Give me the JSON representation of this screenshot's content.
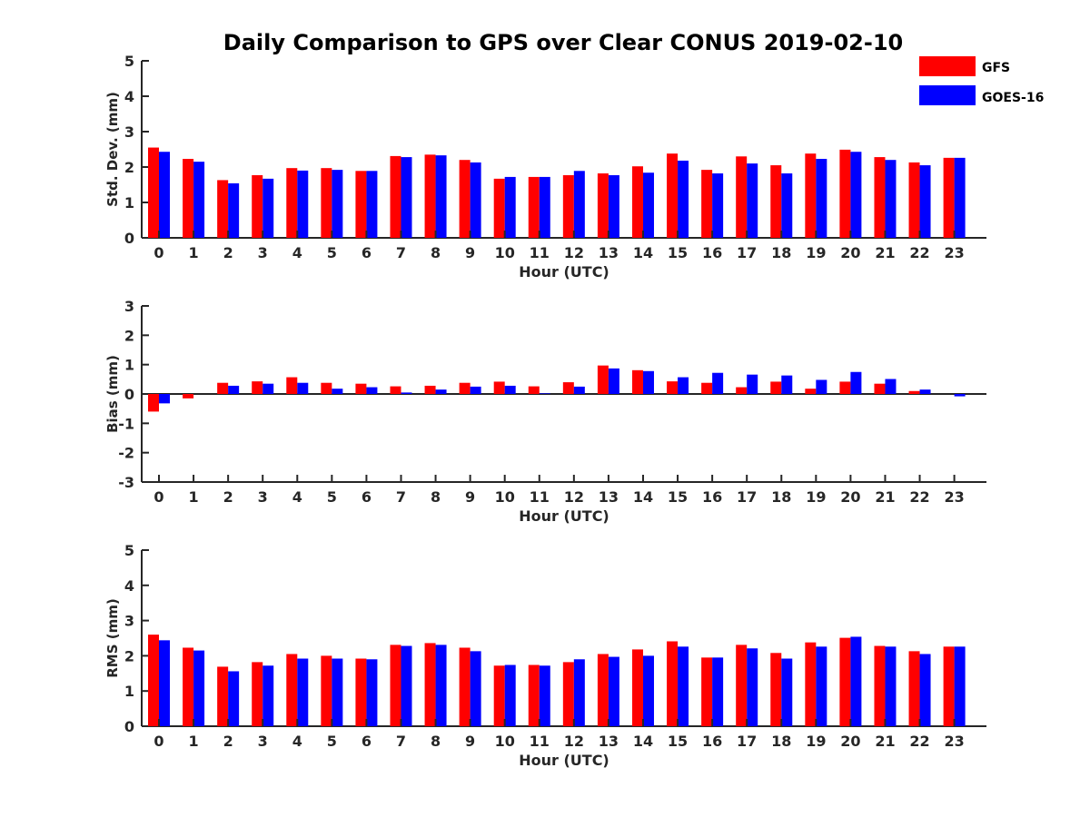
{
  "title": "Daily Comparison to GPS over Clear CONUS 2019-02-10",
  "legend": [
    {
      "label": "GFS",
      "color": "#ff0000"
    },
    {
      "label": "GOES-16",
      "color": "#0000ff"
    }
  ],
  "chart_data": [
    {
      "type": "bar",
      "xlabel": "Hour (UTC)",
      "ylabel": "Std. Dev. (mm)",
      "ylim": [
        0,
        5
      ],
      "yticks": [
        "0",
        "1",
        "2",
        "3",
        "4",
        "5"
      ],
      "categories": [
        "0",
        "1",
        "2",
        "3",
        "4",
        "5",
        "6",
        "7",
        "8",
        "9",
        "10",
        "11",
        "12",
        "13",
        "14",
        "15",
        "16",
        "17",
        "18",
        "19",
        "20",
        "21",
        "22",
        "23"
      ],
      "series": [
        {
          "name": "GFS",
          "values": [
            2.55,
            2.23,
            1.63,
            1.77,
            1.97,
            1.97,
            1.89,
            2.31,
            2.35,
            2.2,
            1.67,
            1.72,
            1.77,
            1.82,
            2.02,
            2.38,
            1.92,
            2.3,
            2.05,
            2.38,
            2.49,
            2.28,
            2.13,
            2.26
          ]
        },
        {
          "name": "GOES-16",
          "values": [
            2.43,
            2.15,
            1.54,
            1.67,
            1.9,
            1.92,
            1.89,
            2.28,
            2.33,
            2.13,
            1.72,
            1.72,
            1.89,
            1.77,
            1.84,
            2.18,
            1.82,
            2.1,
            1.82,
            2.23,
            2.43,
            2.2,
            2.05,
            2.26
          ]
        }
      ]
    },
    {
      "type": "bar",
      "xlabel": "Hour (UTC)",
      "ylabel": "Bias (mm)",
      "ylim": [
        -3,
        3
      ],
      "yticks": [
        "-3",
        "-2",
        "-1",
        "0",
        "1",
        "2",
        "3"
      ],
      "categories": [
        "0",
        "1",
        "2",
        "3",
        "4",
        "5",
        "6",
        "7",
        "8",
        "9",
        "10",
        "11",
        "12",
        "13",
        "14",
        "15",
        "16",
        "17",
        "18",
        "19",
        "20",
        "21",
        "22",
        "23"
      ],
      "series": [
        {
          "name": "GFS",
          "values": [
            -0.6,
            -0.15,
            0.38,
            0.43,
            0.57,
            0.38,
            0.35,
            0.26,
            0.28,
            0.38,
            0.42,
            0.26,
            0.4,
            0.97,
            0.81,
            0.43,
            0.38,
            0.23,
            0.42,
            0.18,
            0.42,
            0.35,
            0.1,
            0.0
          ]
        },
        {
          "name": "GOES-16",
          "values": [
            -0.32,
            0.0,
            0.28,
            0.35,
            0.38,
            0.18,
            0.23,
            0.05,
            0.15,
            0.25,
            0.28,
            0.02,
            0.25,
            0.87,
            0.78,
            0.57,
            0.72,
            0.66,
            0.63,
            0.48,
            0.75,
            0.51,
            0.15,
            -0.08
          ]
        }
      ]
    },
    {
      "type": "bar",
      "xlabel": "Hour (UTC)",
      "ylabel": "RMS (mm)",
      "ylim": [
        0,
        5
      ],
      "yticks": [
        "0",
        "1",
        "2",
        "3",
        "4",
        "5"
      ],
      "categories": [
        "0",
        "1",
        "2",
        "3",
        "4",
        "5",
        "6",
        "7",
        "8",
        "9",
        "10",
        "11",
        "12",
        "13",
        "14",
        "15",
        "16",
        "17",
        "18",
        "19",
        "20",
        "21",
        "22",
        "23"
      ],
      "series": [
        {
          "name": "GFS",
          "values": [
            2.6,
            2.23,
            1.69,
            1.82,
            2.05,
            2.0,
            1.92,
            2.31,
            2.36,
            2.23,
            1.72,
            1.74,
            1.82,
            2.05,
            2.18,
            2.41,
            1.95,
            2.31,
            2.08,
            2.38,
            2.51,
            2.28,
            2.13,
            2.26
          ]
        },
        {
          "name": "GOES-16",
          "values": [
            2.44,
            2.15,
            1.56,
            1.72,
            1.92,
            1.92,
            1.9,
            2.28,
            2.31,
            2.13,
            1.74,
            1.72,
            1.9,
            1.97,
            2.0,
            2.26,
            1.95,
            2.21,
            1.92,
            2.26,
            2.54,
            2.26,
            2.05,
            2.26
          ]
        }
      ]
    }
  ]
}
